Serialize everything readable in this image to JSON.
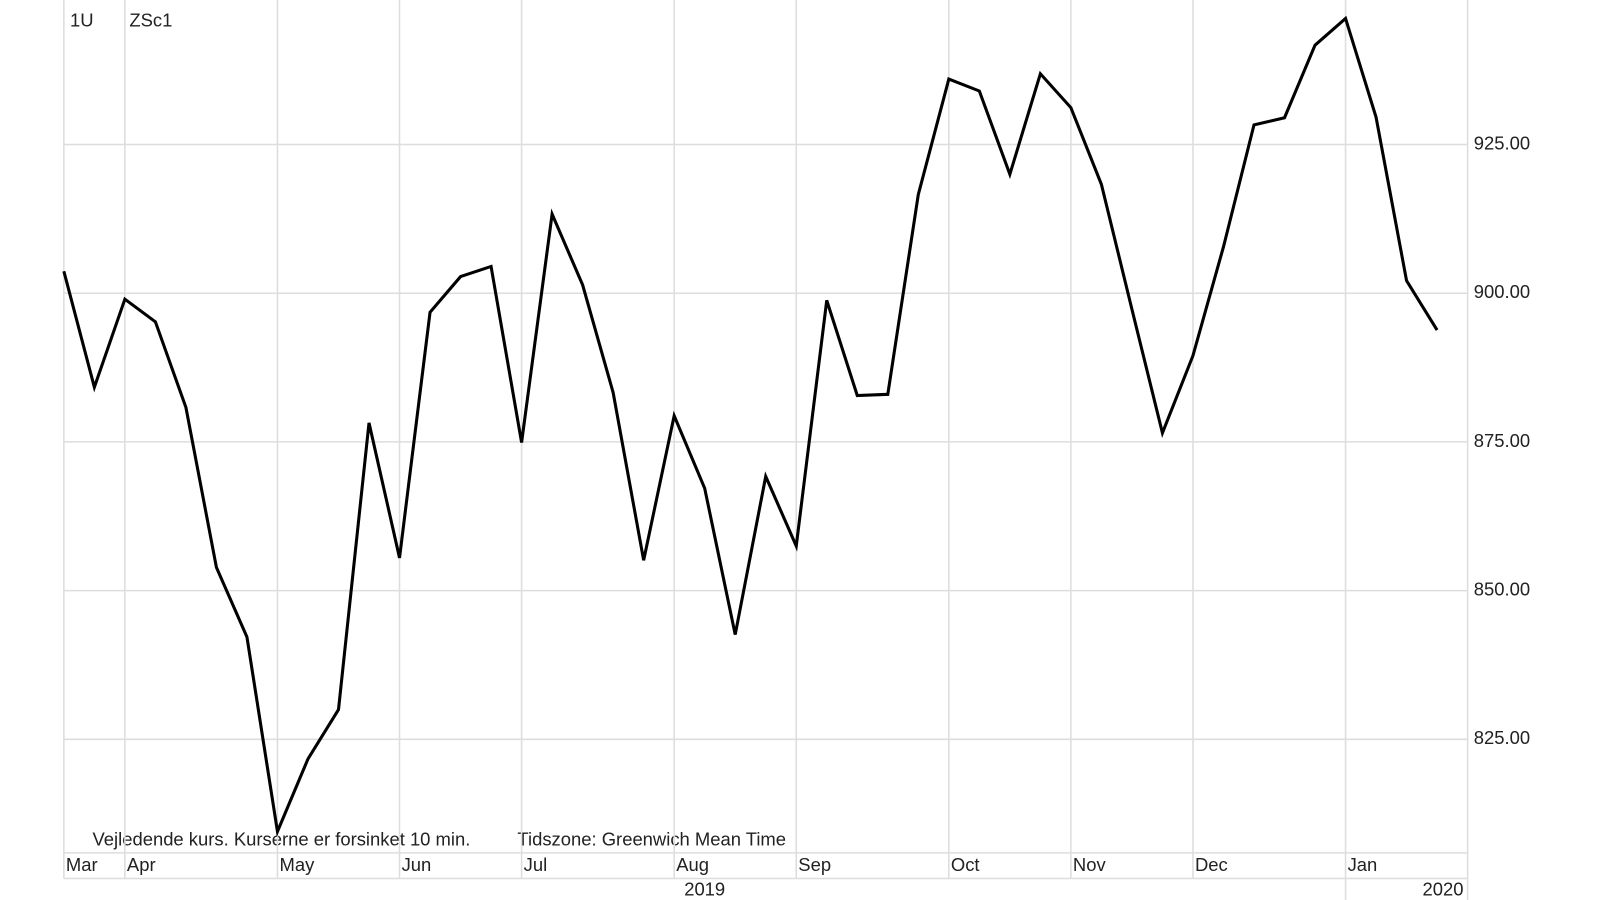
{
  "chart_data": {
    "type": "line",
    "interval": "1U",
    "symbol": "ZSc1",
    "note": "Vejledende kurs. Kurserne er forsinket 10 min.",
    "timezone": "Tidszone: Greenwich Mean Time",
    "series": [
      {
        "name": "ZSc1",
        "color": "#000000",
        "values": [
          903.7,
          884.2,
          899.0,
          895.2,
          880.8,
          853.9,
          842.2,
          809.5,
          821.7,
          830.0,
          878.2,
          855.5,
          896.8,
          902.8,
          904.5,
          874.9,
          913.3,
          901.4,
          883.3,
          855.1,
          879.4,
          867.2,
          842.6,
          869.2,
          857.5,
          898.8,
          882.8,
          883.0,
          916.6,
          936.0,
          934.0,
          920.0,
          936.9,
          931.2,
          918.3,
          897.3,
          876.5,
          889.5,
          907.8,
          928.3,
          929.5,
          941.7,
          946.2,
          929.6,
          902.1,
          893.8
        ]
      }
    ],
    "xlim": [
      0,
      46
    ],
    "xticks": [
      {
        "value": 0,
        "label": "Mar"
      },
      {
        "value": 2,
        "label": "Apr"
      },
      {
        "value": 7,
        "label": "May"
      },
      {
        "value": 11,
        "label": "Jun"
      },
      {
        "value": 15,
        "label": "Jul"
      },
      {
        "value": 20,
        "label": "Aug"
      },
      {
        "value": 24,
        "label": "Sep"
      },
      {
        "value": 29,
        "label": "Oct"
      },
      {
        "value": 33,
        "label": "Nov"
      },
      {
        "value": 37,
        "label": "Dec"
      },
      {
        "value": 42,
        "label": "Jan"
      }
    ],
    "years": [
      {
        "value": 21,
        "label": "2019"
      },
      {
        "value": 46,
        "label": "2020"
      }
    ],
    "ylim": [
      805.9,
      949.3
    ],
    "yticks": [
      {
        "value": 825,
        "label": "825.00"
      },
      {
        "value": 850,
        "label": "850.00"
      },
      {
        "value": 875,
        "label": "875.00"
      },
      {
        "value": 900,
        "label": "900.00"
      },
      {
        "value": 925,
        "label": "925.00"
      }
    ],
    "grid": true
  }
}
